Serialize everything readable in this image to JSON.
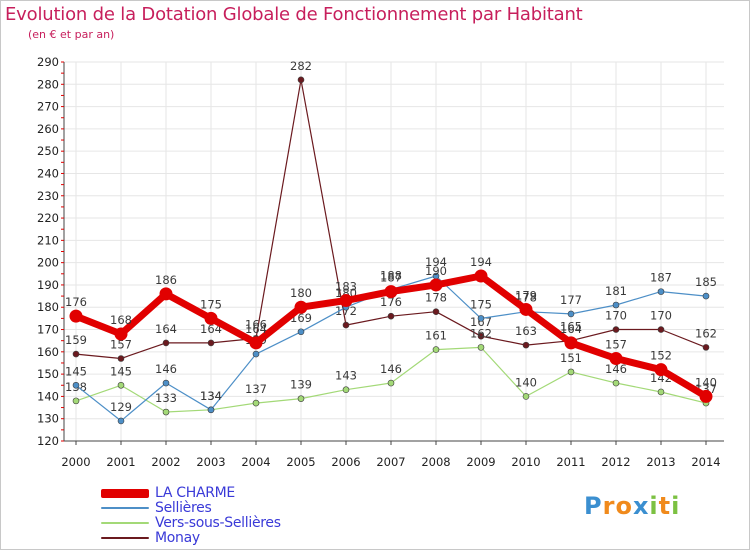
{
  "header": {
    "title": "Evolution de la Dotation Globale de Fonctionnement par Habitant",
    "subtitle": "(en € et par an)"
  },
  "logo": {
    "text": "Proxiti"
  },
  "colors": {
    "title": "#c71f5c",
    "axis": "#333333",
    "grid": "#e6e6e6",
    "legend_text": "#3a3ad8"
  },
  "chart_data": {
    "type": "line",
    "x": [
      "2000",
      "2001",
      "2002",
      "2003",
      "2004",
      "2005",
      "2006",
      "2007",
      "2008",
      "2009",
      "2010",
      "2011",
      "2012",
      "2013",
      "2014"
    ],
    "ylim": [
      120,
      290
    ],
    "yticks": [
      120,
      130,
      140,
      150,
      160,
      170,
      180,
      190,
      200,
      210,
      220,
      230,
      240,
      250,
      260,
      270,
      280,
      290
    ],
    "grid": true,
    "legend_position": "bottom-left",
    "series": [
      {
        "name": "Monay",
        "color": "#6b1a1f",
        "width": 1.2,
        "values": [
          159,
          157,
          164,
          164,
          166,
          282,
          172,
          176,
          178,
          167,
          163,
          165,
          170,
          170,
          162
        ]
      },
      {
        "name": "Vers-sous-Sellières",
        "color": "#a3d977",
        "width": 1.2,
        "values": [
          138,
          145,
          133,
          134,
          137,
          139,
          143,
          146,
          161,
          162,
          140,
          151,
          146,
          142,
          137
        ]
      },
      {
        "name": "Sellières",
        "color": "#4d8fc7",
        "width": 1.2,
        "values": [
          145,
          129,
          146,
          134,
          159,
          169,
          180,
          188,
          194,
          175,
          178,
          177,
          181,
          187,
          185
        ]
      },
      {
        "name": "LA CHARME",
        "color": "#e10000",
        "width": 7,
        "values": [
          176,
          168,
          186,
          175,
          164,
          180,
          183,
          187,
          190,
          194,
          179,
          164,
          157,
          152,
          140
        ]
      }
    ]
  },
  "legend": [
    {
      "label": "LA CHARME",
      "color": "#e10000"
    },
    {
      "label": "Sellières",
      "color": "#4d8fc7"
    },
    {
      "label": "Vers-sous-Sellières",
      "color": "#a3d977"
    },
    {
      "label": "Monay",
      "color": "#6b1a1f"
    }
  ]
}
